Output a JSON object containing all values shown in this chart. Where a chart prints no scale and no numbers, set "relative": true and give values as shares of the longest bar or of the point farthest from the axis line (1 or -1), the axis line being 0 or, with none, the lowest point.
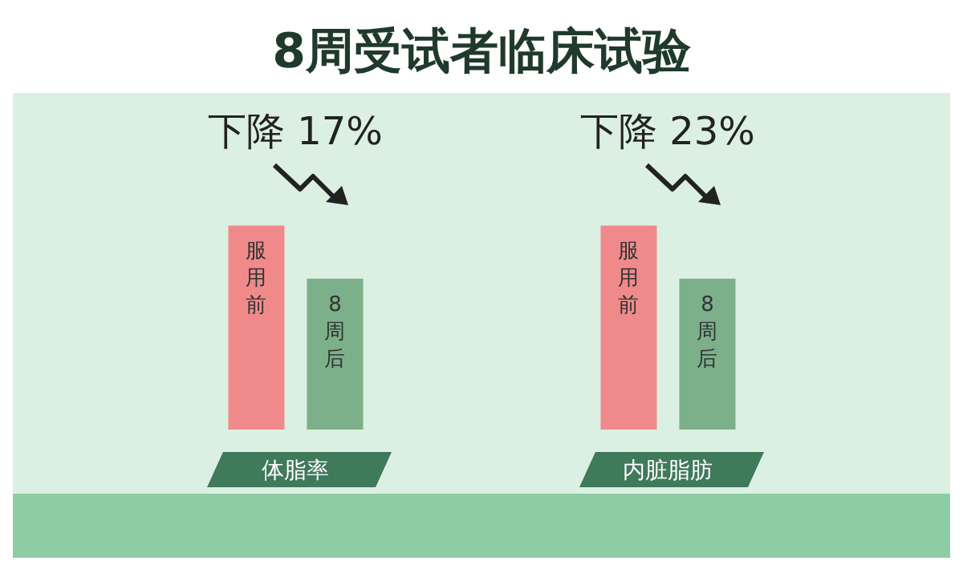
{
  "chart_data": {
    "type": "bar",
    "title": "8周受试者临床试验",
    "relative": true,
    "categories": [
      "体脂率",
      "内脏脂肪"
    ],
    "series": [
      {
        "name": "服用前",
        "color": "#f08a8a",
        "values": [
          1,
          1
        ]
      },
      {
        "name": "8周后",
        "color": "#7bb08a",
        "values": [
          0.74,
          0.74
        ]
      }
    ],
    "annotations": [
      "下降 17%",
      "下降 23%"
    ],
    "legend": false,
    "grid": false
  }
}
